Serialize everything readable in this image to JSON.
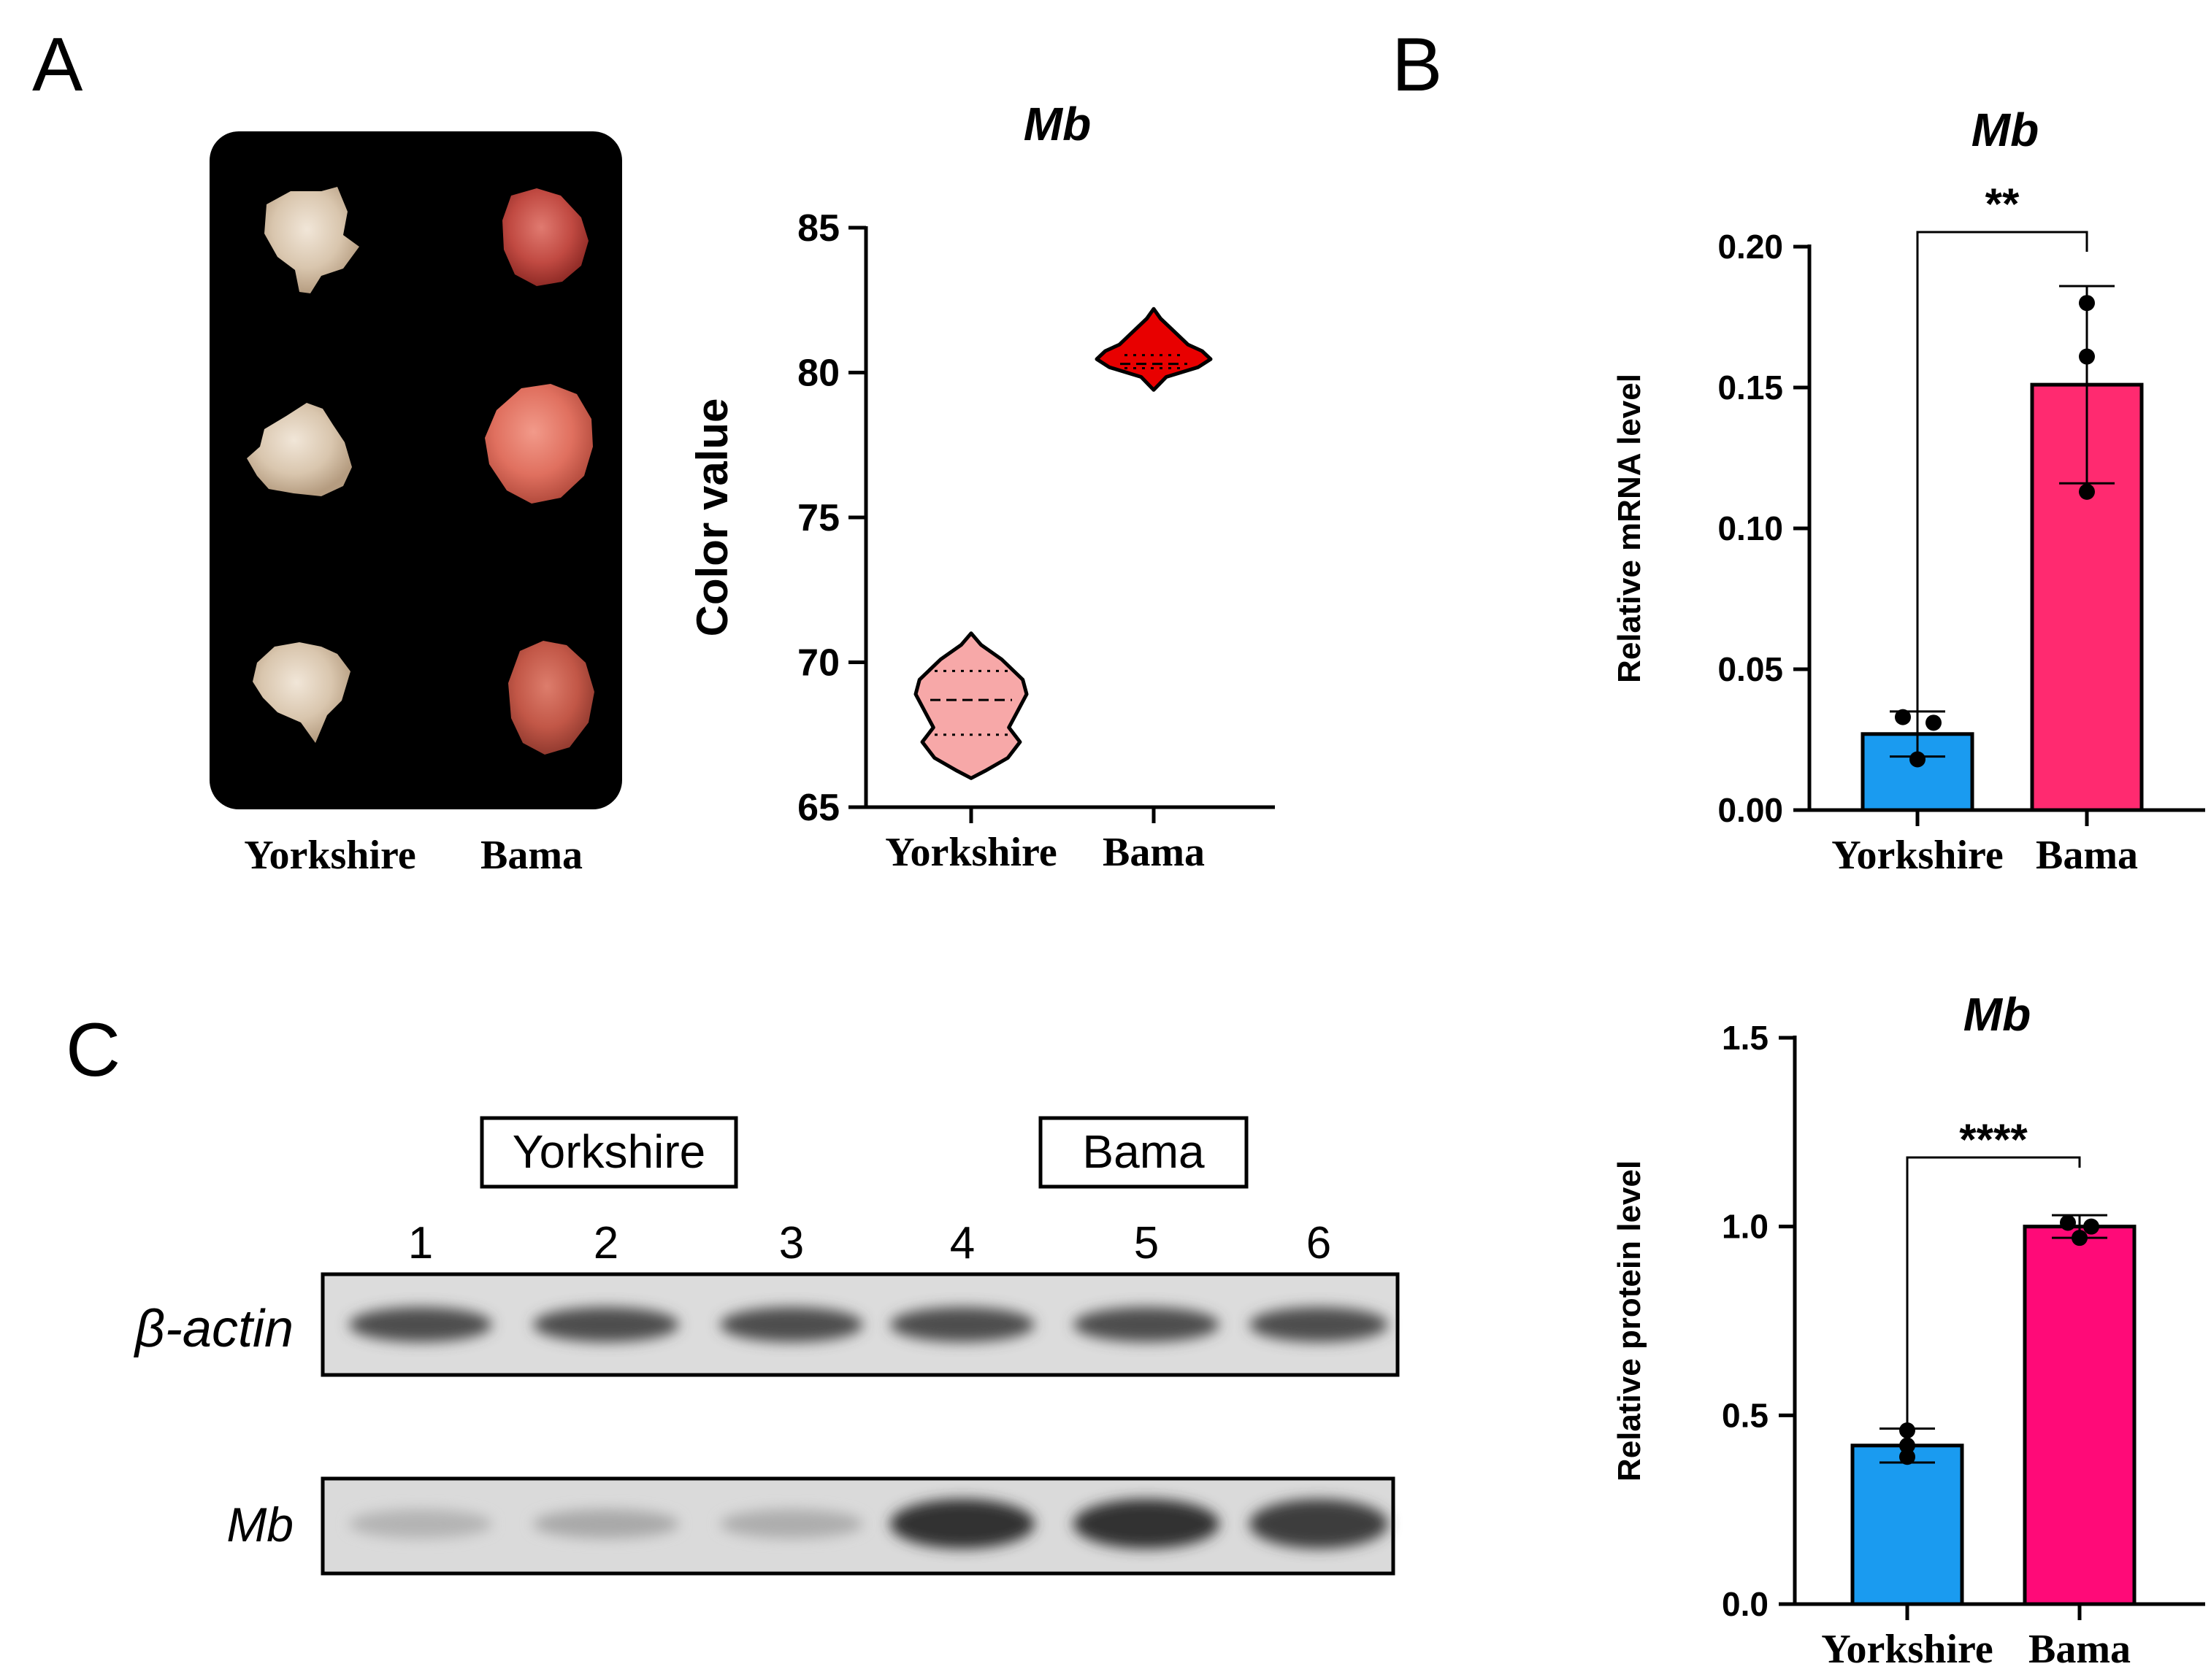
{
  "panels": {
    "A": {
      "letter": "A",
      "photo": {
        "labels": [
          "Yorkshire",
          "Bama"
        ]
      }
    },
    "B": {
      "letter": "B"
    },
    "C": {
      "letter": "C",
      "blot": {
        "groups": [
          "Yorkshire",
          "Bama"
        ],
        "lanes": [
          "1",
          "2",
          "3",
          "4",
          "5",
          "6"
        ],
        "rows": [
          "β-actin",
          "Mb"
        ],
        "band_intensity": {
          "beta_actin": [
            0.85,
            0.85,
            0.85,
            0.85,
            0.85,
            0.85
          ],
          "Mb": [
            0.35,
            0.4,
            0.38,
            0.95,
            0.95,
            0.9
          ]
        }
      }
    }
  },
  "chart_data": [
    {
      "id": "violin",
      "type": "violin",
      "title": "Mb",
      "xlabel": "",
      "ylabel": "Color value",
      "categories": [
        "Yorkshire",
        "Bama"
      ],
      "yticks": [
        "65",
        "70",
        "75",
        "80",
        "85"
      ],
      "ylim": [
        65,
        85
      ],
      "series": [
        {
          "category": "Yorkshire",
          "color": "#f7a8a8",
          "min": 66,
          "max": 71,
          "median": 68.7,
          "q1": 67.5,
          "q3": 69.7
        },
        {
          "category": "Bama",
          "color": "#e80000",
          "min": 79.4,
          "max": 82.2,
          "median": 80.3,
          "q1": 80.15,
          "q3": 80.6
        }
      ]
    },
    {
      "id": "mrna",
      "type": "bar",
      "title": "Mb",
      "xlabel": "",
      "ylabel": "Relative  mRNA  level",
      "categories": [
        "Yorkshire",
        "Bama"
      ],
      "yticks": [
        "0.00",
        "0.05",
        "0.10",
        "0.15",
        "0.20"
      ],
      "ylim": [
        0,
        0.2
      ],
      "values": [
        0.027,
        0.151
      ],
      "errors": [
        0.008,
        0.035
      ],
      "points": [
        [
          0.033,
          0.018,
          0.031
        ],
        [
          0.18,
          0.161,
          0.113
        ]
      ],
      "colors": [
        "#1a9bf0",
        "#ff2a70"
      ],
      "significance": "**"
    },
    {
      "id": "protein",
      "type": "bar",
      "title": "Mb",
      "xlabel": "",
      "ylabel": "Relative  protein  level",
      "categories": [
        "Yorkshire",
        "Bama"
      ],
      "yticks": [
        "0.0",
        "0.5",
        "1.0",
        "1.5"
      ],
      "ylim": [
        0,
        1.5
      ],
      "values": [
        0.42,
        1.0
      ],
      "errors": [
        0.045,
        0.03
      ],
      "points": [
        [
          0.46,
          0.39,
          0.42
        ],
        [
          1.01,
          0.97,
          1.0
        ]
      ],
      "colors": [
        "#1a9bf0",
        "#ff0a78"
      ],
      "significance": "****"
    }
  ]
}
